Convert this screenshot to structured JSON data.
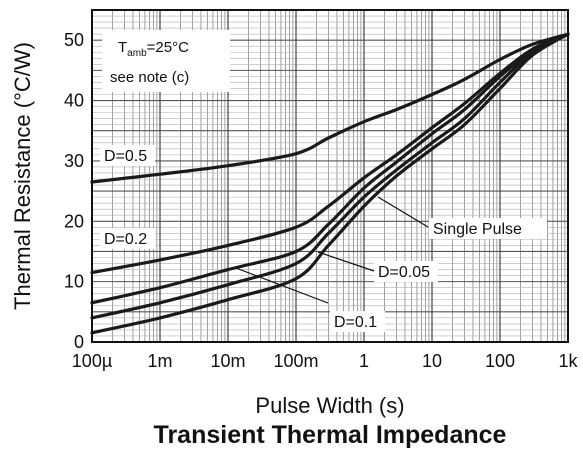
{
  "chart_data": {
    "type": "line",
    "title": "Transient Thermal Impedance",
    "xlabel": "Pulse Width (s)",
    "ylabel": "Thermal Resistance (°C/W)",
    "x_scale": "log",
    "xlim": [
      0.0001,
      1000
    ],
    "ylim": [
      0,
      55
    ],
    "grid": true,
    "x_tick_values": [
      0.0001,
      0.001,
      0.01,
      0.1,
      1,
      10,
      100,
      1000
    ],
    "x_tick_labels": [
      "100µ",
      "1m",
      "10m",
      "100m",
      "1",
      "10",
      "100",
      "1k"
    ],
    "y_tick_values": [
      0,
      10,
      20,
      30,
      40,
      50
    ],
    "y_tick_labels": [
      "0",
      "10",
      "20",
      "30",
      "40",
      "50"
    ],
    "note_box": {
      "line1_main": "T",
      "line1_sub": "amb",
      "line1_rest": "=25°C",
      "line2": "see note (c)"
    },
    "series": [
      {
        "name": "D=0.5",
        "x": [
          0.0001,
          0.001,
          0.01,
          0.1,
          0.3,
          1,
          3,
          10,
          30,
          100,
          300,
          1000
        ],
        "y": [
          26.5,
          27.8,
          29.2,
          31.2,
          33.8,
          36.5,
          38.5,
          41.0,
          43.5,
          46.8,
          49.3,
          51.0
        ]
      },
      {
        "name": "D=0.2",
        "x": [
          0.0001,
          0.001,
          0.01,
          0.1,
          0.3,
          1,
          3,
          10,
          30,
          100,
          300,
          1000
        ],
        "y": [
          11.5,
          13.6,
          16.0,
          19.0,
          22.5,
          27.2,
          31.0,
          35.5,
          39.5,
          44.5,
          48.5,
          51.0
        ]
      },
      {
        "name": "D=0.1",
        "x": [
          0.0001,
          0.001,
          0.01,
          0.1,
          0.3,
          1,
          3,
          10,
          30,
          100,
          300,
          1000
        ],
        "y": [
          6.5,
          9.0,
          12.0,
          15.0,
          19.5,
          25.5,
          29.8,
          34.5,
          38.5,
          44.0,
          48.3,
          51.0
        ]
      },
      {
        "name": "D=0.05",
        "x": [
          0.0001,
          0.001,
          0.01,
          0.1,
          0.3,
          1,
          3,
          10,
          30,
          100,
          300,
          1000
        ],
        "y": [
          4.0,
          6.5,
          9.5,
          13.0,
          18.0,
          24.0,
          28.5,
          33.0,
          37.0,
          43.0,
          48.0,
          51.0
        ]
      },
      {
        "name": "Single Pulse",
        "x": [
          0.0001,
          0.001,
          0.01,
          0.1,
          0.3,
          1,
          3,
          10,
          30,
          100,
          300,
          1000
        ],
        "y": [
          1.5,
          4.0,
          7.0,
          10.5,
          16.0,
          22.5,
          27.5,
          32.0,
          36.0,
          42.0,
          47.5,
          51.0
        ]
      }
    ]
  }
}
